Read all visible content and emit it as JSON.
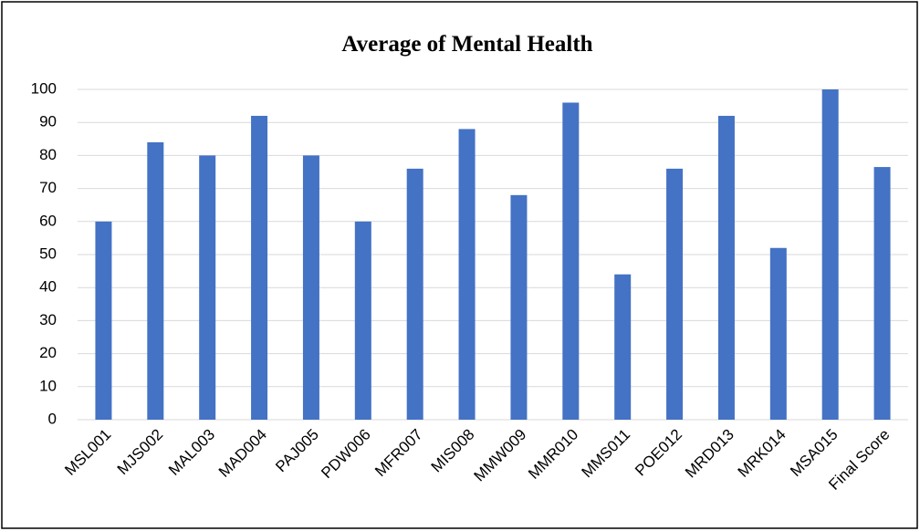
{
  "chart_data": {
    "type": "bar",
    "title": "Average of Mental Health",
    "categories": [
      "MSL001",
      "MJS002",
      "MAL003",
      "MAD004",
      "PAJ005",
      "PDW006",
      "MFR007",
      "MIS008",
      "MMW009",
      "MMR010",
      "MMS011",
      "POE012",
      "MRD013",
      "MRK014",
      "MSA015",
      "Final Score"
    ],
    "values": [
      60,
      84,
      80,
      92,
      80,
      60,
      76,
      88,
      68,
      96,
      44,
      76,
      92,
      52,
      100,
      76.5
    ],
    "color": "#4472c4",
    "ylim": [
      0,
      100
    ],
    "yticks": [
      0,
      10,
      20,
      30,
      40,
      50,
      60,
      70,
      80,
      90,
      100
    ],
    "grid": true
  }
}
